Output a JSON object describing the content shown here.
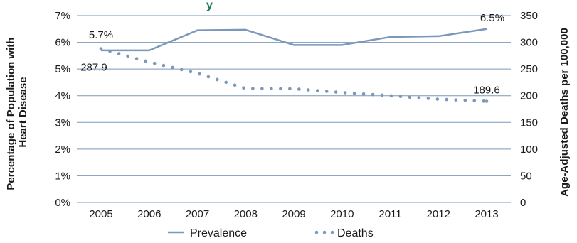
{
  "title_fragment": "y",
  "chart_data": {
    "type": "line",
    "x": [
      "2005",
      "2006",
      "2007",
      "2008",
      "2009",
      "2010",
      "2011",
      "2012",
      "2013"
    ],
    "series": [
      {
        "name": "Prevalence",
        "axis": "left",
        "style": "solid",
        "color": "#7b98b8",
        "values": [
          5.7,
          5.7,
          6.45,
          6.47,
          5.9,
          5.9,
          6.2,
          6.23,
          6.5
        ]
      },
      {
        "name": "Deaths",
        "axis": "right",
        "style": "dotted",
        "color": "#7b98b8",
        "values": [
          287.9,
          263.0,
          242.0,
          213.5,
          213.0,
          206.0,
          200.0,
          193.5,
          189.6
        ]
      }
    ],
    "ylabel": "Percentage of Population with Heart Disease",
    "ylabel_lines": [
      "Percentage of Population with",
      "Heart Disease"
    ],
    "y2label": "Age-Adjusted Deaths per 100,000",
    "ylim": [
      0,
      7
    ],
    "y2lim": [
      0,
      350
    ],
    "yticks": [
      "0%",
      "1%",
      "2%",
      "3%",
      "4%",
      "5%",
      "6%",
      "7%"
    ],
    "y2ticks": [
      "0",
      "50",
      "100",
      "150",
      "200",
      "250",
      "300",
      "350"
    ],
    "annotations": [
      "5.7%",
      "6.5%",
      "287.9",
      "189.6"
    ],
    "legend_position": "bottom",
    "grid": true
  }
}
